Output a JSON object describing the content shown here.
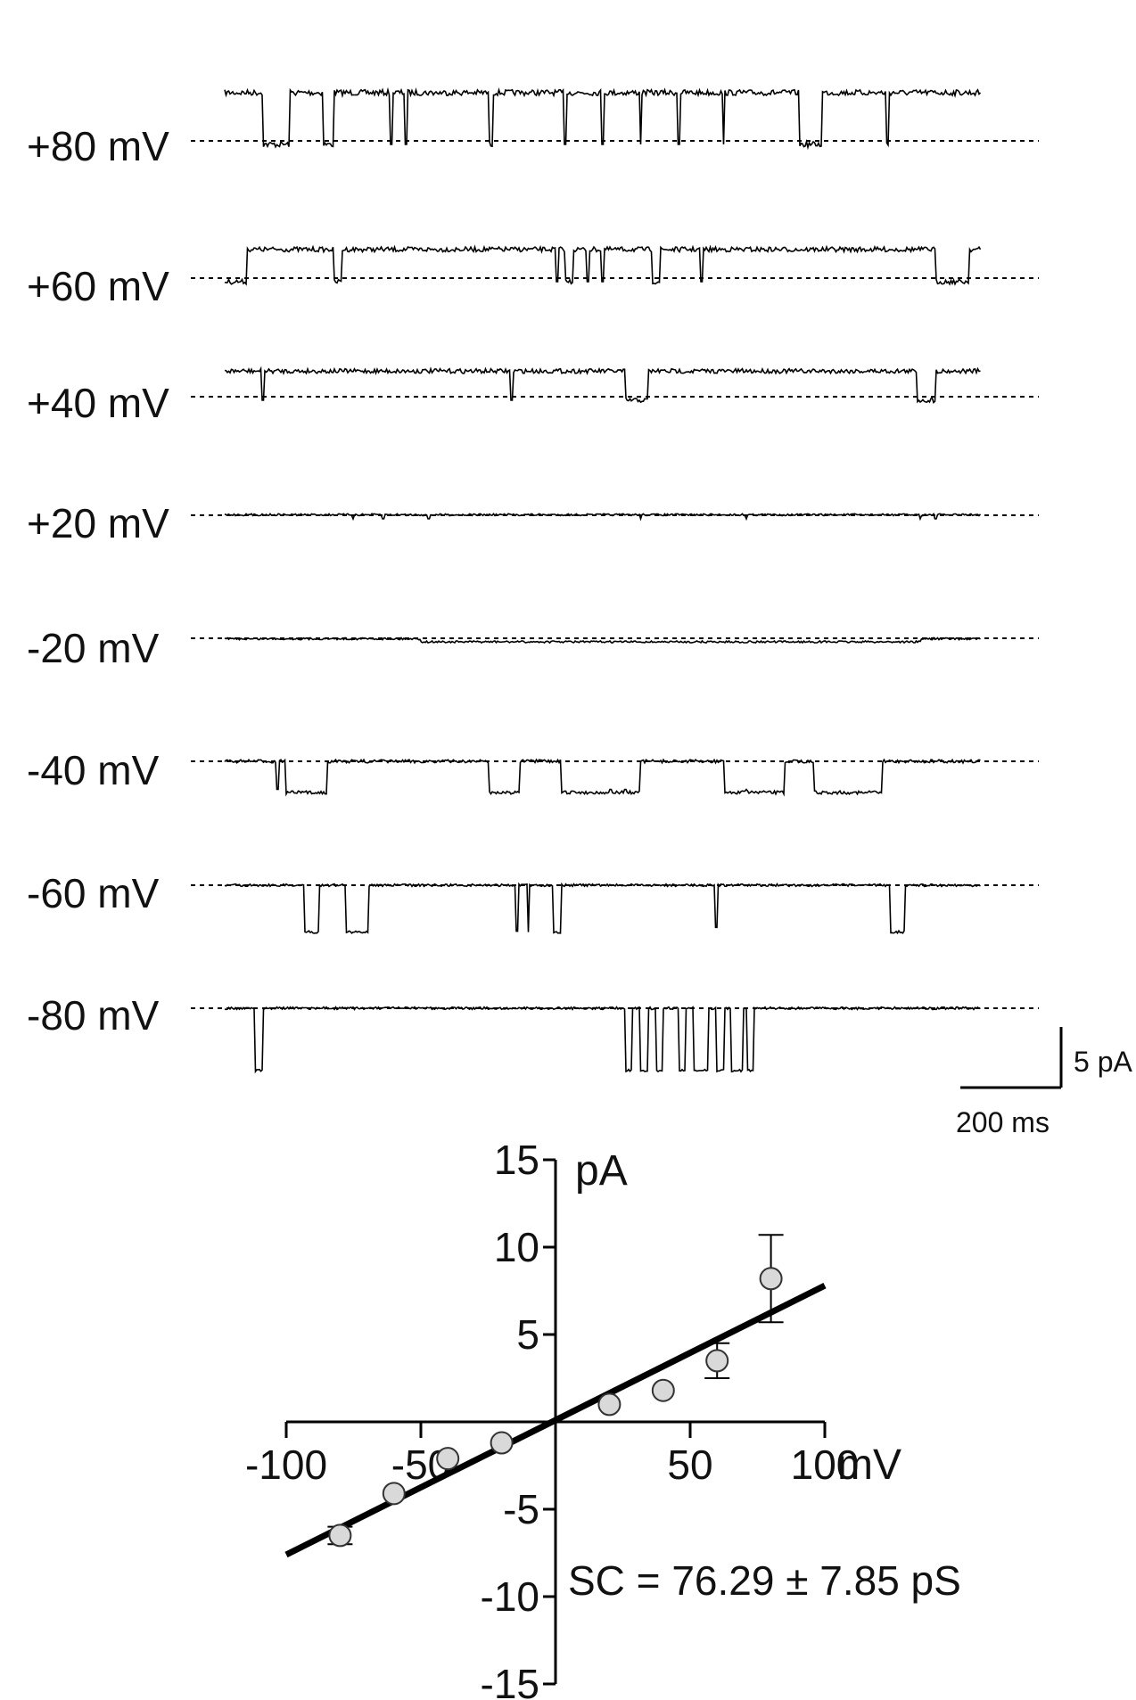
{
  "traces": {
    "scale_bar": {
      "current_label": "5 pA",
      "time_label": "200 ms"
    },
    "rows": [
      {
        "label": "+80 mV",
        "voltage": 80,
        "open_amplitude": 4.7,
        "noise": 0.35,
        "events": [
          [
            0.05,
            0.085
          ],
          [
            0.13,
            0.145
          ],
          [
            0.35,
            0.355
          ],
          [
            0.76,
            0.79
          ],
          [
            0.875,
            0.878
          ]
        ],
        "spikes": [
          0.22,
          0.24,
          0.45,
          0.5,
          0.55,
          0.6,
          0.66
        ]
      },
      {
        "label": "+60 mV",
        "voltage": 60,
        "open_amplitude": 2.8,
        "noise": 0.3,
        "events": [
          [
            0.0,
            0.03
          ],
          [
            0.145,
            0.155
          ],
          [
            0.45,
            0.46
          ],
          [
            0.565,
            0.575
          ],
          [
            0.94,
            0.985
          ]
        ],
        "spikes": [
          0.44,
          0.48,
          0.5,
          0.63
        ]
      },
      {
        "label": "+40 mV",
        "voltage": 40,
        "open_amplitude": 2.5,
        "noise": 0.28,
        "events": [
          [
            0.53,
            0.56
          ],
          [
            0.915,
            0.94
          ]
        ],
        "spikes": [
          0.05,
          0.38
        ]
      },
      {
        "label": "+20 mV",
        "voltage": 20,
        "open_amplitude": 0.05,
        "noise": 0.12,
        "events": [],
        "spikes": [
          0.17,
          0.21,
          0.27,
          0.55,
          0.69,
          0.92,
          0.94
        ]
      },
      {
        "label": "-20 mV",
        "voltage": -20,
        "open_amplitude": -0.05,
        "noise": 0.12,
        "events": [
          [
            0.26,
            0.92
          ]
        ],
        "spikes": []
      },
      {
        "label": "-40 mV",
        "voltage": -40,
        "open_amplitude": 0.0,
        "noise": 0.2,
        "events": [
          [
            0.08,
            0.135
          ],
          [
            0.35,
            0.39
          ],
          [
            0.445,
            0.55
          ],
          [
            0.66,
            0.74
          ],
          [
            0.78,
            0.87
          ]
        ],
        "spikes": [
          0.07,
          0.51,
          0.53,
          0.69
        ]
      },
      {
        "label": "-60 mV",
        "voltage": -60,
        "open_amplitude": 0.0,
        "noise": 0.15,
        "events": [
          [
            0.105,
            0.125
          ],
          [
            0.16,
            0.19
          ],
          [
            0.385,
            0.388
          ],
          [
            0.4,
            0.403
          ],
          [
            0.435,
            0.445
          ],
          [
            0.88,
            0.9
          ]
        ],
        "spikes": [
          0.65
        ]
      },
      {
        "label": "-80 mV",
        "voltage": -80,
        "open_amplitude": 0.0,
        "noise": 0.15,
        "events": [
          [
            0.04,
            0.05
          ],
          [
            0.53,
            0.538
          ],
          [
            0.55,
            0.56
          ],
          [
            0.57,
            0.58
          ],
          [
            0.6,
            0.61
          ],
          [
            0.62,
            0.64
          ],
          [
            0.65,
            0.66
          ],
          [
            0.67,
            0.685
          ],
          [
            0.69,
            0.7
          ]
        ],
        "spikes": []
      }
    ]
  },
  "chart_data": {
    "type": "scatter",
    "xlabel": "mV",
    "ylabel": "pA",
    "xlim": [
      -100,
      100
    ],
    "ylim": [
      -15,
      15
    ],
    "x_ticks": [
      -100,
      -50,
      50,
      100
    ],
    "x_tick_labels": [
      "-100",
      "-50",
      "50",
      "100"
    ],
    "y_ticks": [
      15,
      10,
      5,
      -5,
      -10,
      -15
    ],
    "y_tick_labels": [
      "15",
      "10",
      "5",
      "-5",
      "-10",
      "-15"
    ],
    "points": [
      {
        "x": -80,
        "y": -6.5,
        "err": 0.5
      },
      {
        "x": -60,
        "y": -4.1,
        "err": 0
      },
      {
        "x": -40,
        "y": -2.1,
        "err": 0
      },
      {
        "x": -20,
        "y": -1.2,
        "err": 0
      },
      {
        "x": 20,
        "y": 1.0,
        "err": 0
      },
      {
        "x": 40,
        "y": 1.8,
        "err": 0
      },
      {
        "x": 60,
        "y": 3.5,
        "err": 1.0
      },
      {
        "x": 80,
        "y": 8.2,
        "err": 2.5
      }
    ],
    "fit_line": {
      "x": [
        -100,
        100
      ],
      "y": [
        -7.6,
        7.8
      ]
    },
    "annotation": "SC = 76.29 ± 7.85 pS",
    "grid": false,
    "marker_fill": "#d9d9d9",
    "line_color": "#000000"
  }
}
